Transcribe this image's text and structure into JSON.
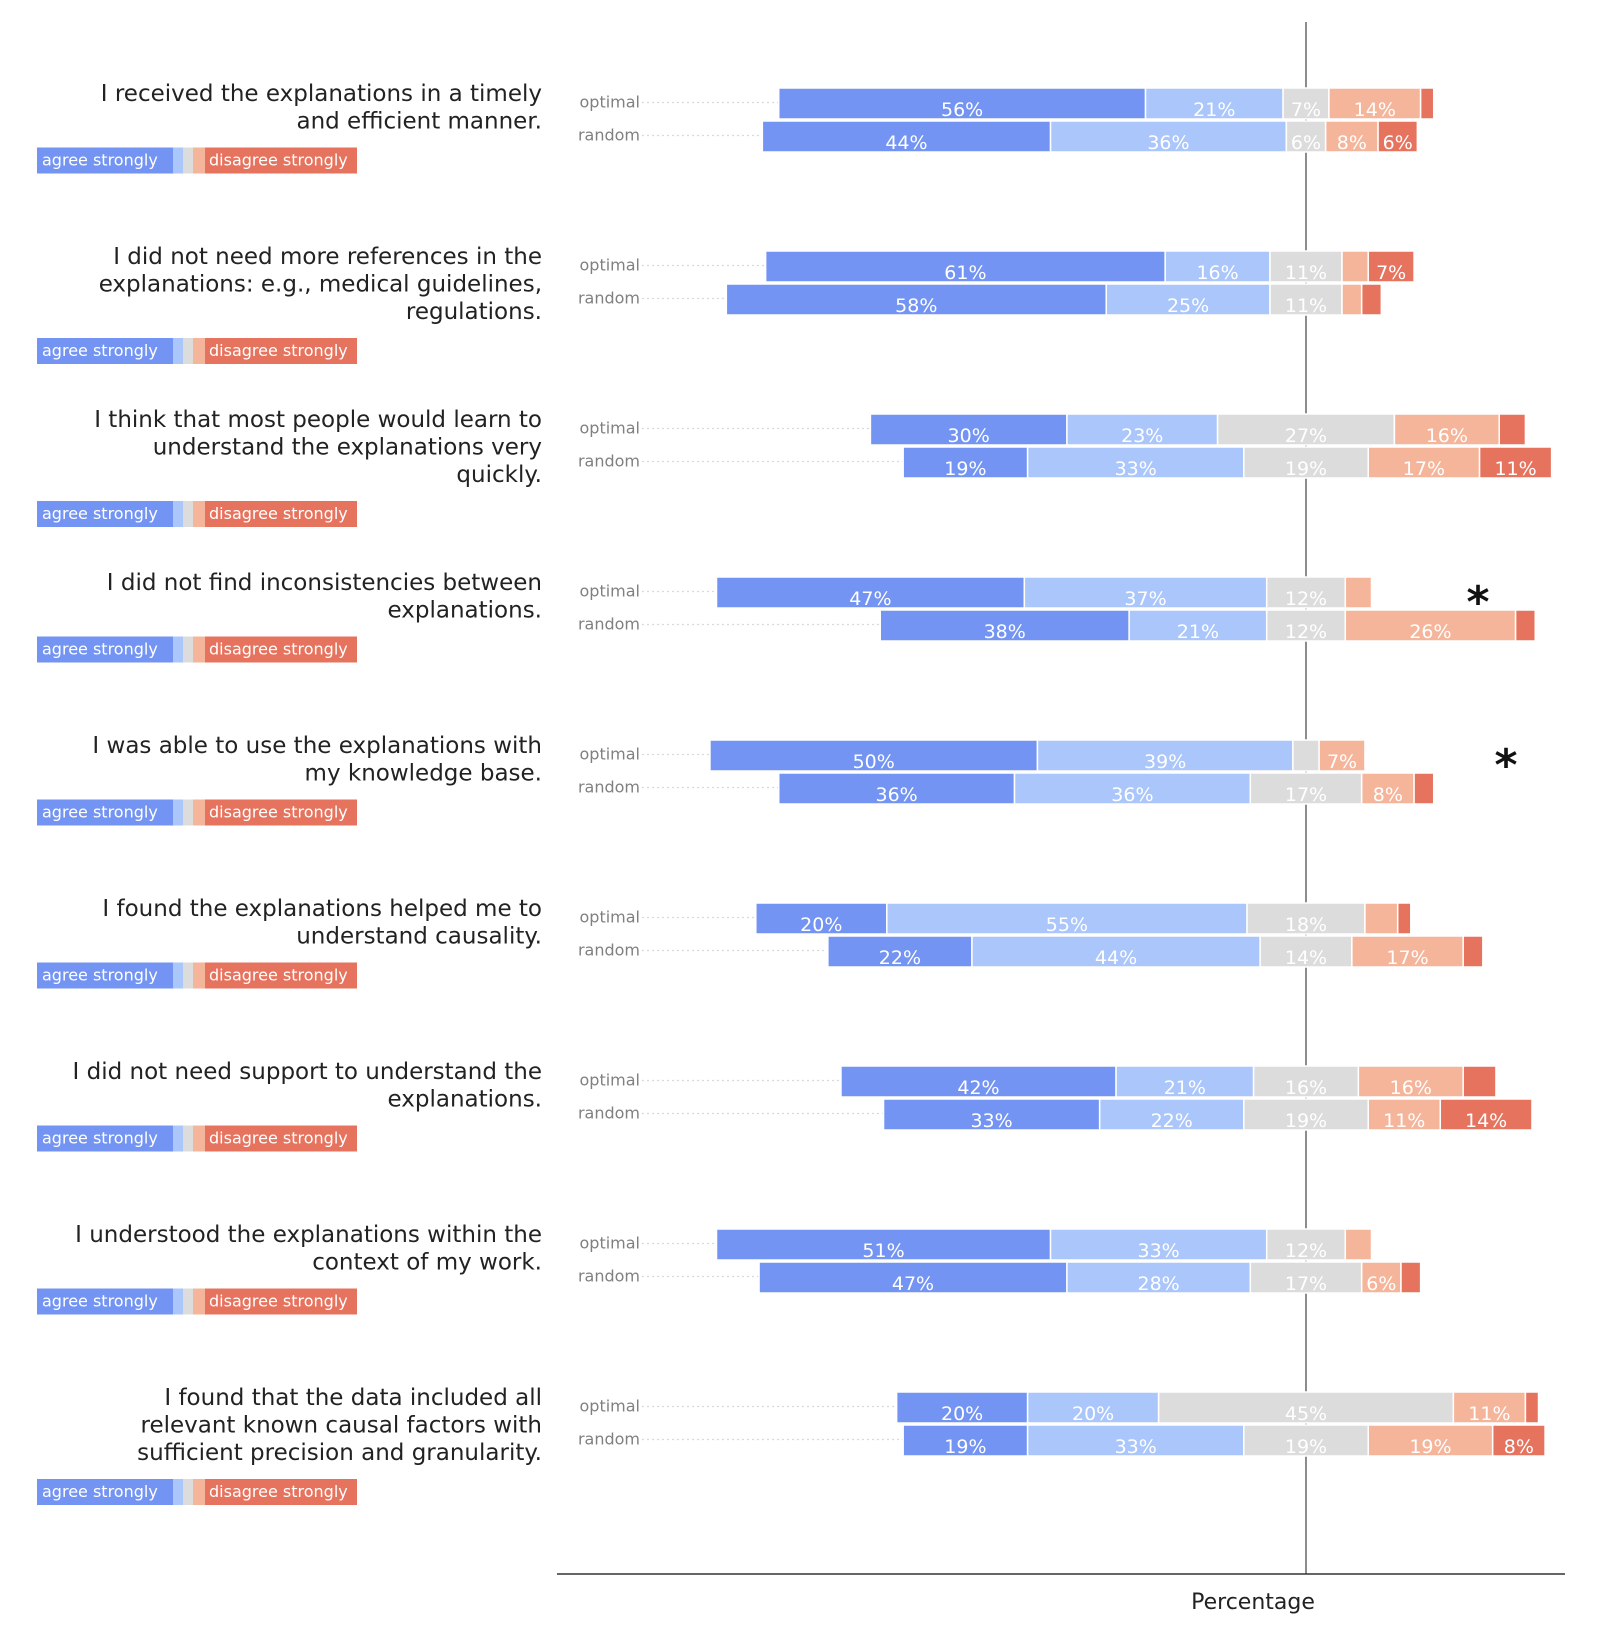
{
  "colors": {
    "agree_strongly": "#7394f2",
    "agree": "#aac6fb",
    "neutral": "#dcdcdc",
    "disagree": "#f5b59a",
    "disagree_strongly": "#e6735e",
    "center_line": "#808080",
    "guide_line": "#d9d9d9"
  },
  "legend": {
    "agree_label": "agree strongly",
    "disagree_label": "disagree strongly"
  },
  "chart_data": {
    "type": "bar",
    "subtype": "diverging-stacked-likert",
    "xlabel": "Percentage",
    "ylabel": "",
    "category_order": [
      "agree strongly",
      "agree",
      "neutral",
      "disagree",
      "disagree strongly"
    ],
    "series_rows": [
      "optimal",
      "random"
    ],
    "questions": [
      {
        "title": "I received the explanations in a timely and efficient manner.",
        "title_lines": [
          "I received the explanations in a timely",
          "and efficient manner."
        ],
        "significant": false,
        "optimal": [
          56,
          21,
          7,
          14,
          2
        ],
        "random": [
          44,
          36,
          6,
          8,
          6
        ]
      },
      {
        "title": "I did not need more references in the explanations: e.g., medical guidelines, regulations.",
        "title_lines": [
          "I did not need more references in the",
          "explanations: e.g., medical guidelines,",
          "regulations."
        ],
        "significant": false,
        "optimal": [
          61,
          16,
          11,
          4,
          7
        ],
        "random": [
          58,
          25,
          11,
          3,
          3
        ]
      },
      {
        "title": "I think that most people would learn to understand the explanations very quickly.",
        "title_lines": [
          "I think that most people would learn to",
          "understand the explanations very",
          "quickly."
        ],
        "significant": false,
        "optimal": [
          30,
          23,
          27,
          16,
          4
        ],
        "random": [
          19,
          33,
          19,
          17,
          11
        ]
      },
      {
        "title": "I did not find inconsistencies between explanations.",
        "title_lines": [
          "I did not find inconsistencies between",
          "explanations."
        ],
        "significant": true,
        "optimal": [
          47,
          37,
          12,
          4,
          0
        ],
        "random": [
          38,
          21,
          12,
          26,
          3
        ]
      },
      {
        "title": "I was able to use the explanations with my knowledge base.",
        "title_lines": [
          "I was able to use the explanations with",
          "my knowledge base."
        ],
        "significant": true,
        "optimal": [
          50,
          39,
          4,
          7,
          0
        ],
        "random": [
          36,
          36,
          17,
          8,
          3
        ]
      },
      {
        "title": "I found the explanations helped me to understand causality.",
        "title_lines": [
          "I found the explanations helped me to",
          "understand causality."
        ],
        "significant": false,
        "optimal": [
          20,
          55,
          18,
          5,
          2
        ],
        "random": [
          22,
          44,
          14,
          17,
          3
        ]
      },
      {
        "title": "I did not need support to understand the explanations.",
        "title_lines": [
          "I did not need support to understand the",
          "explanations."
        ],
        "significant": false,
        "optimal": [
          42,
          21,
          16,
          16,
          5
        ],
        "random": [
          33,
          22,
          19,
          11,
          14
        ]
      },
      {
        "title": "I understood the explanations within the context of my work.",
        "title_lines": [
          "I understood the explanations within the",
          "context of my work."
        ],
        "significant": false,
        "optimal": [
          51,
          33,
          12,
          4,
          0
        ],
        "random": [
          47,
          28,
          17,
          6,
          3
        ]
      },
      {
        "title": "I found that the data included all relevant known causal factors with sufficient precision and granularity.",
        "title_lines": [
          "I found that the data included all",
          "relevant known causal factors with",
          "sufficient precision and granularity."
        ],
        "significant": false,
        "optimal": [
          20,
          20,
          45,
          11,
          2
        ],
        "random": [
          19,
          33,
          19,
          19,
          8
        ]
      }
    ],
    "min_label_percent": 6,
    "significance_marker": "*"
  }
}
